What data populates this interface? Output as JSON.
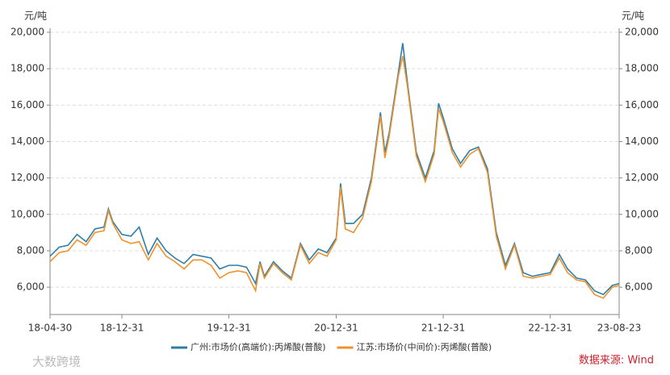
{
  "chart_data": {
    "type": "line",
    "y_label": "元/吨",
    "y2_label": "元/吨",
    "x": [
      "18-04-30",
      "18-05-31",
      "18-06-30",
      "18-07-31",
      "18-08-31",
      "18-09-30",
      "18-10-31",
      "18-11-15",
      "18-11-30",
      "18-12-31",
      "19-01-31",
      "19-02-28",
      "19-03-31",
      "19-04-30",
      "19-05-31",
      "19-06-30",
      "19-07-31",
      "19-08-31",
      "19-09-30",
      "19-10-31",
      "19-11-30",
      "19-12-31",
      "20-01-31",
      "20-02-29",
      "20-03-31",
      "20-04-15",
      "20-04-30",
      "20-05-31",
      "20-06-30",
      "20-07-31",
      "20-08-31",
      "20-09-30",
      "20-10-31",
      "20-11-30",
      "20-12-31",
      "21-01-15",
      "21-01-31",
      "21-02-28",
      "21-03-31",
      "21-04-30",
      "21-05-31",
      "21-06-15",
      "21-06-30",
      "21-07-31",
      "21-08-15",
      "21-08-31",
      "21-09-30",
      "21-10-31",
      "21-11-30",
      "21-12-15",
      "21-12-31",
      "22-01-31",
      "22-02-28",
      "22-03-31",
      "22-04-30",
      "22-05-31",
      "22-06-30",
      "22-07-31",
      "22-08-31",
      "22-09-30",
      "22-10-31",
      "22-11-30",
      "22-12-31",
      "23-01-31",
      "23-02-28",
      "23-03-31",
      "23-04-30",
      "23-05-31",
      "23-06-30",
      "23-07-31",
      "23-08-23"
    ],
    "series": [
      {
        "name": "广州:市场价(高端价):丙烯酸(普酸)",
        "color": "#2e7fa6",
        "values": [
          7700,
          8200,
          8300,
          8900,
          8500,
          9200,
          9300,
          10300,
          9600,
          8900,
          8800,
          9300,
          7800,
          8700,
          8000,
          7600,
          7300,
          7800,
          7700,
          7600,
          7000,
          7200,
          7200,
          7100,
          6200,
          7400,
          6600,
          7400,
          6900,
          6500,
          8400,
          7500,
          8100,
          7900,
          8700,
          11700,
          9500,
          9500,
          10000,
          12000,
          15600,
          13400,
          14500,
          17800,
          19400,
          17200,
          13400,
          12000,
          13500,
          16100,
          15300,
          13600,
          12800,
          13500,
          13700,
          12500,
          9000,
          7200,
          8400,
          6800,
          6600,
          6700,
          6800,
          7800,
          7000,
          6500,
          6400,
          5800,
          5600,
          6100,
          6200
        ]
      },
      {
        "name": "江苏:市场价(中间价):丙烯酸(普酸)",
        "color": "#f0922b",
        "values": [
          7400,
          7900,
          8000,
          8600,
          8300,
          9000,
          9100,
          10200,
          9500,
          8600,
          8400,
          8500,
          7500,
          8400,
          7700,
          7400,
          7000,
          7500,
          7500,
          7200,
          6500,
          6800,
          6900,
          6800,
          5800,
          7300,
          6500,
          7300,
          6800,
          6400,
          8300,
          7300,
          7900,
          7700,
          8600,
          11500,
          9200,
          9000,
          9800,
          11800,
          15400,
          13100,
          14300,
          17600,
          18700,
          17000,
          13200,
          11800,
          13300,
          15800,
          15100,
          13400,
          12600,
          13300,
          13600,
          12300,
          8800,
          7000,
          8300,
          6600,
          6500,
          6600,
          6700,
          7600,
          6800,
          6400,
          6300,
          5600,
          5400,
          6000,
          6100
        ]
      }
    ],
    "xlim": [
      "18-04-30",
      "23-08-23"
    ],
    "xticks": [
      "18-04-30",
      "18-12-31",
      "19-12-31",
      "20-12-31",
      "21-12-31",
      "22-12-31",
      "23-08-23"
    ],
    "ylim": [
      4500,
      20000
    ],
    "yticks": [
      {
        "value": 6000,
        "label": "6,000"
      },
      {
        "value": 8000,
        "label": "8,000"
      },
      {
        "value": 10000,
        "label": "10,000"
      },
      {
        "value": 12000,
        "label": "12,000"
      },
      {
        "value": 14000,
        "label": "14,000"
      },
      {
        "value": 16000,
        "label": "16,000"
      },
      {
        "value": 18000,
        "label": "18,000"
      },
      {
        "value": 20000,
        "label": "20,000"
      }
    ],
    "y2lim": [
      4500,
      20000
    ],
    "y2ticks": [
      {
        "value": 6000,
        "label": "6,000"
      },
      {
        "value": 8000,
        "label": "8,000"
      },
      {
        "value": 10000,
        "label": "10,000"
      },
      {
        "value": 12000,
        "label": "12,000"
      },
      {
        "value": 14000,
        "label": "14,000"
      },
      {
        "value": 16000,
        "label": "16,000"
      },
      {
        "value": 18000,
        "label": "18,000"
      },
      {
        "value": 20000,
        "label": "20,000"
      }
    ],
    "grid": true,
    "legend": "bottom",
    "source": "数据来源: Wind",
    "watermark": "大数跨境"
  }
}
